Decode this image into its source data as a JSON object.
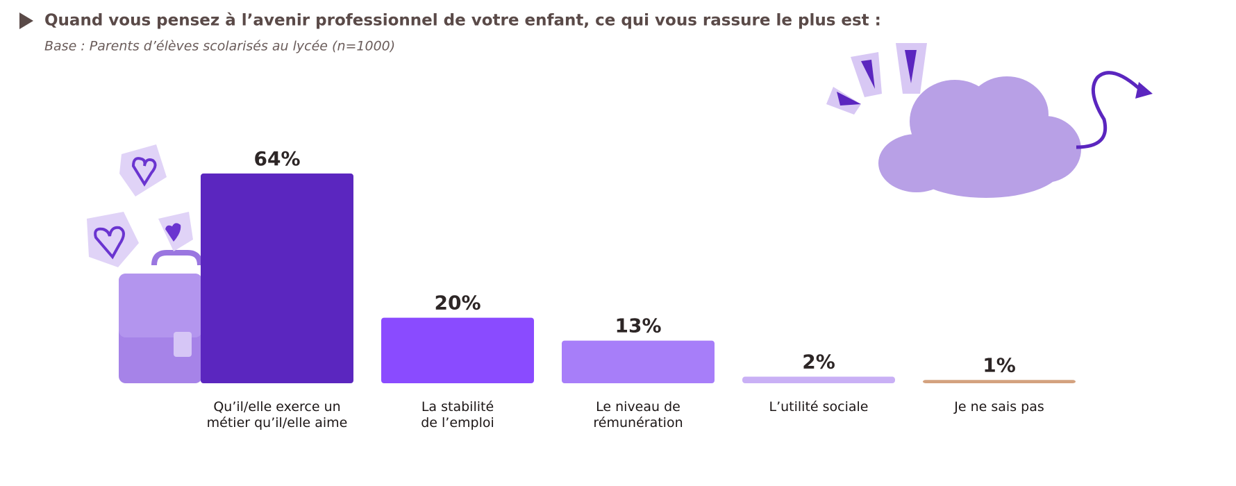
{
  "chart_data": {
    "type": "bar",
    "title": "Quand vous pensez à l’avenir professionnel de votre enfant, ce qui vous rassure le plus est :",
    "subtitle": "Base : Parents d’élèves scolarisés au lycée (n=1000)",
    "categories": [
      "Qu’il/elle exerce un\nmétier qu’il/elle aime",
      "La stabilité\nde l’emploi",
      "Le niveau de\nrémunération",
      "L’utilité sociale",
      "Je ne sais pas"
    ],
    "values": [
      64,
      20,
      13,
      2,
      1
    ],
    "value_labels": [
      "64%",
      "20%",
      "13%",
      "2%",
      "1%"
    ],
    "colors": [
      "#5b26bf",
      "#8a4bff",
      "#a77ef9",
      "#c9b0f5",
      "#d4a27f"
    ]
  }
}
